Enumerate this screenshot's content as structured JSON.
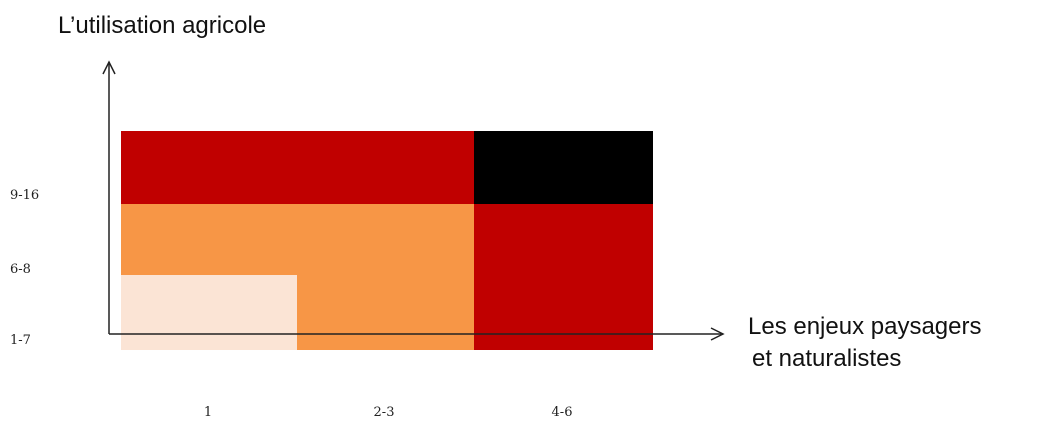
{
  "chart_data": {
    "type": "heatmap",
    "title": "",
    "ylabel": "L’utilisation agricole",
    "xlabel_lines": [
      "Les enjeux paysagers",
      "et naturalistes"
    ],
    "x_categories": [
      "1",
      "2-3",
      "4-6"
    ],
    "y_categories": [
      "1-7",
      "6-8",
      "9-16"
    ],
    "grid": false,
    "legend": "none",
    "colors": {
      "light": "#fbe4d5",
      "orange": "#f79646",
      "red": "#c00000",
      "black": "#000000"
    },
    "cells": [
      {
        "x": "1",
        "y": "1-7",
        "level": "light"
      },
      {
        "x": "2-3",
        "y": "1-7",
        "level": "orange"
      },
      {
        "x": "4-6",
        "y": "1-7",
        "level": "red"
      },
      {
        "x": "1",
        "y": "6-8",
        "level": "orange"
      },
      {
        "x": "2-3",
        "y": "6-8",
        "level": "orange"
      },
      {
        "x": "4-6",
        "y": "6-8",
        "level": "red"
      },
      {
        "x": "1",
        "y": "9-16",
        "level": "red"
      },
      {
        "x": "2-3",
        "y": "9-16",
        "level": "red"
      },
      {
        "x": "4-6",
        "y": "9-16",
        "level": "black"
      }
    ]
  }
}
